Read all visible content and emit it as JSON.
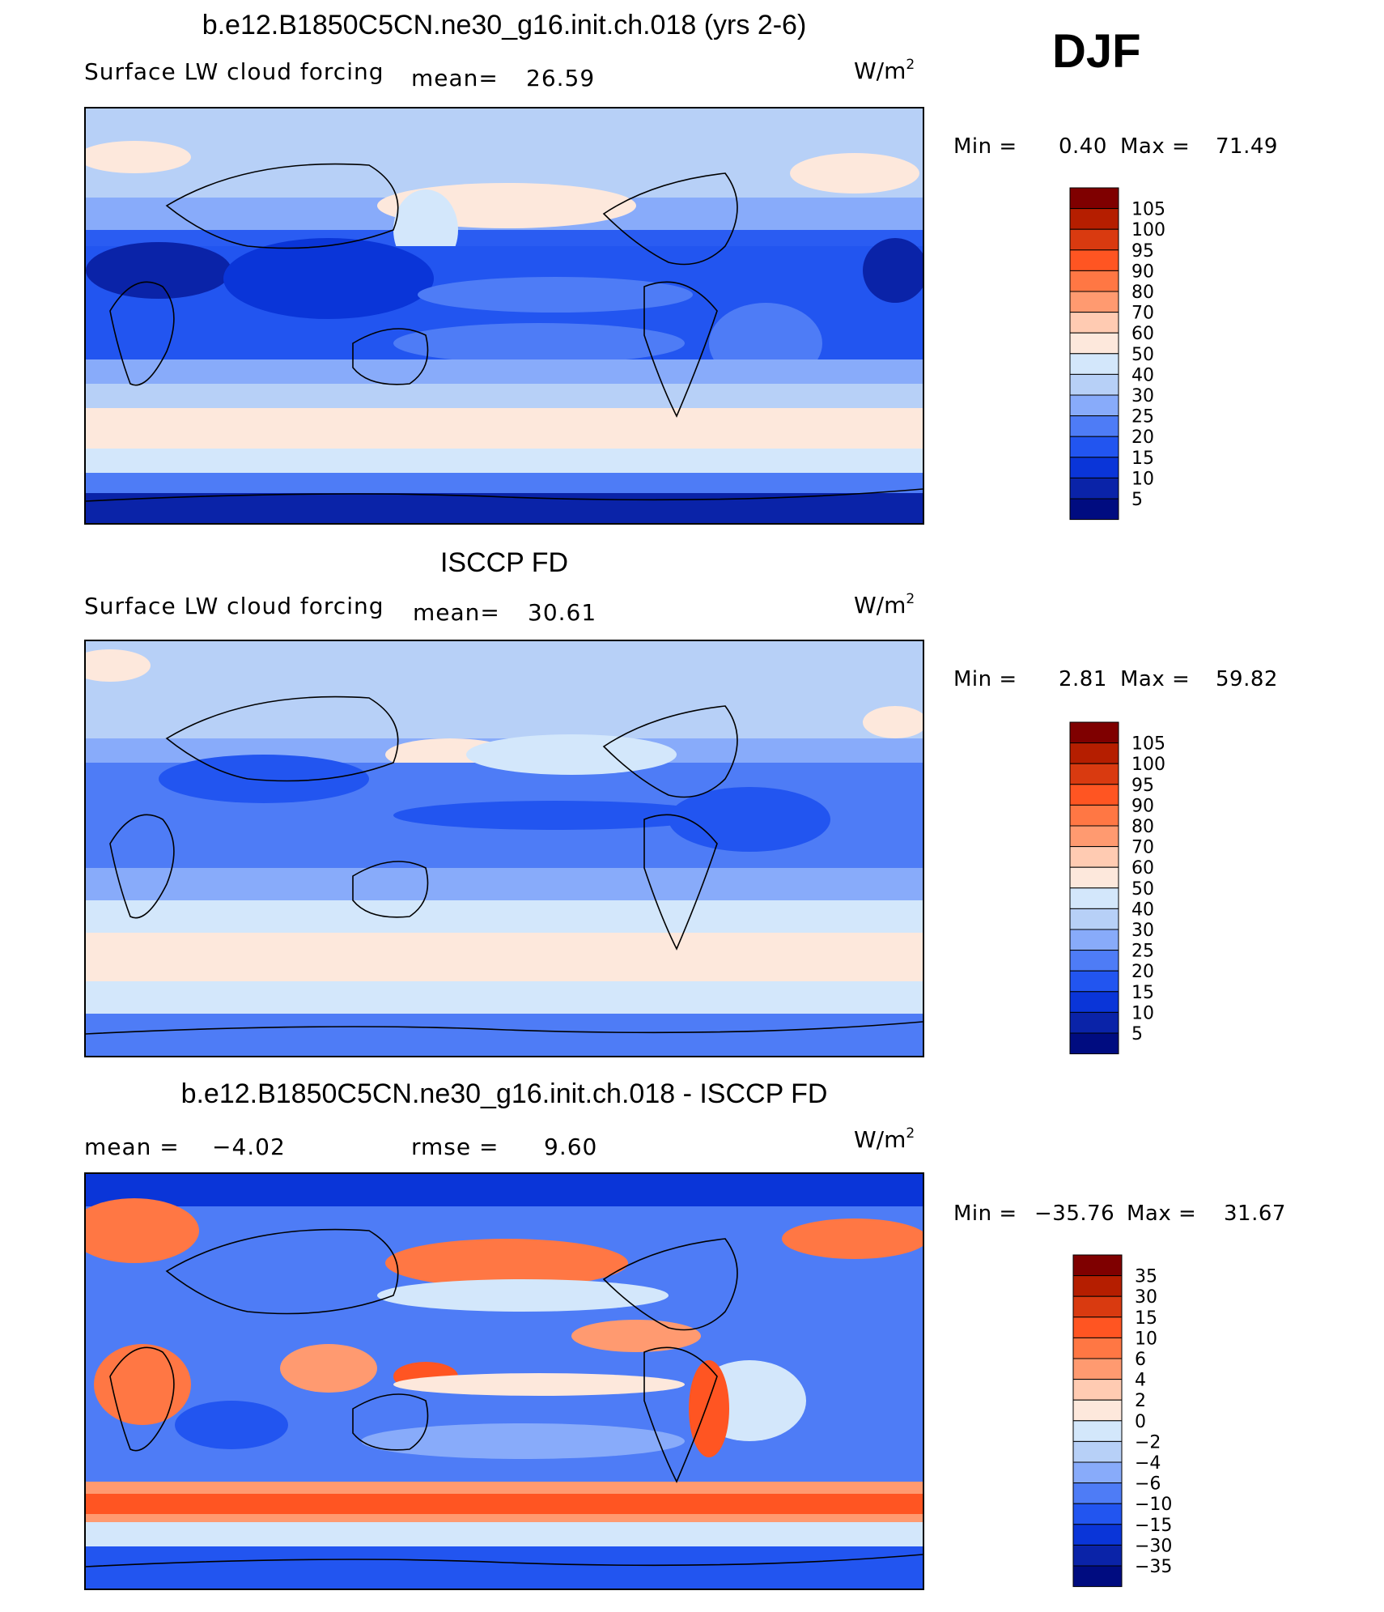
{
  "season": "DJF",
  "panels": [
    {
      "title": "b.e12.B1850C5CN.ne30_g16.init.ch.018 (yrs 2-6)",
      "variable": "Surface LW cloud forcing",
      "stat1_label": "mean=",
      "stat1_value": "26.59",
      "units": "W/m",
      "units_exp": "2",
      "min_label": "Min =",
      "min_value": "0.40",
      "max_label": "Max =",
      "max_value": "71.49"
    },
    {
      "title": "ISCCP FD",
      "variable": "Surface LW cloud forcing",
      "stat1_label": "mean=",
      "stat1_value": "30.61",
      "units": "W/m",
      "units_exp": "2",
      "min_label": "Min =",
      "min_value": "2.81",
      "max_label": "Max =",
      "max_value": "59.82"
    },
    {
      "title": "b.e12.B1850C5CN.ne30_g16.init.ch.018 - ISCCP FD",
      "stat1_label": "mean =",
      "stat1_value": "−4.02",
      "stat2_label": "rmse =",
      "stat2_value": "9.60",
      "units": "W/m",
      "units_exp": "2",
      "min_label": "Min =",
      "min_value": "−35.76",
      "max_label": "Max =",
      "max_value": "31.67"
    }
  ],
  "colorbars": {
    "abs_levels": [
      "105",
      "100",
      "95",
      "90",
      "80",
      "70",
      "60",
      "50",
      "40",
      "30",
      "25",
      "20",
      "15",
      "10",
      "5"
    ],
    "diff_levels": [
      "35",
      "30",
      "15",
      "10",
      "6",
      "4",
      "2",
      "0",
      "−2",
      "−4",
      "−6",
      "−10",
      "−15",
      "−30",
      "−35"
    ],
    "colors": [
      "#7f0000",
      "#b51e00",
      "#d93a10",
      "#ff5522",
      "#ff7744",
      "#ff9a70",
      "#ffcbb2",
      "#fde8dc",
      "#d3e7fb",
      "#b7d0f7",
      "#88abfa",
      "#4e7cf6",
      "#2255f0",
      "#0a35d8",
      "#0a23a8",
      "#000c80"
    ]
  },
  "chart_data": [
    {
      "type": "heatmap",
      "title": "b.e12.B1850C5CN.ne30_g16.init.ch.018 (yrs 2-6)",
      "subtitle": "Surface LW cloud forcing",
      "units": "W/m2",
      "mean": 26.59,
      "min": 0.4,
      "max": 71.49,
      "contour_levels": [
        5,
        10,
        15,
        20,
        25,
        30,
        40,
        50,
        60,
        70,
        80,
        90,
        95,
        100,
        105
      ]
    },
    {
      "type": "heatmap",
      "title": "ISCCP FD",
      "subtitle": "Surface LW cloud forcing",
      "units": "W/m2",
      "mean": 30.61,
      "min": 2.81,
      "max": 59.82,
      "contour_levels": [
        5,
        10,
        15,
        20,
        25,
        30,
        40,
        50,
        60,
        70,
        80,
        90,
        95,
        100,
        105
      ]
    },
    {
      "type": "heatmap",
      "title": "b.e12.B1850C5CN.ne30_g16.init.ch.018 - ISCCP FD",
      "units": "W/m2",
      "mean": -4.02,
      "rmse": 9.6,
      "min": -35.76,
      "max": 31.67,
      "contour_levels": [
        -35,
        -30,
        -15,
        -10,
        -6,
        -4,
        -2,
        0,
        2,
        4,
        6,
        10,
        15,
        30,
        35
      ]
    }
  ]
}
